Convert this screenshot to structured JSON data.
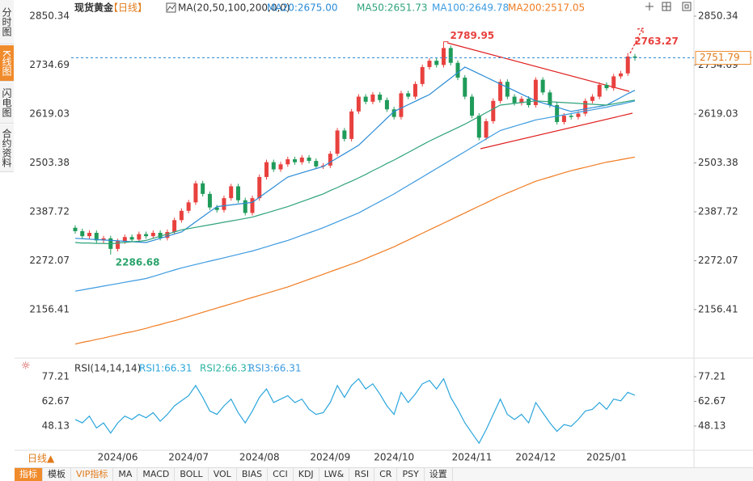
{
  "sidebar_tabs": [
    "分时图",
    "K线图",
    "闪电图",
    "合约资料"
  ],
  "period_button": "日线▲",
  "toolbar": [
    "指标",
    "模板",
    "VIP指标",
    "MA",
    "MACD",
    "BOLL",
    "VOL",
    "BIAS",
    "CCI",
    "KDJ",
    "LW&",
    "RSI",
    "CR",
    "PSY",
    "设置"
  ],
  "chart_data": [
    {
      "type": "candlestick",
      "title": "现货黄金",
      "period": "【日线】",
      "indicator": "MA(20,50,100,200,0,0)",
      "categories": [
        null,
        null,
        null,
        null,
        null,
        null,
        "2024/06",
        null,
        null,
        null,
        null,
        null,
        null,
        null,
        null,
        null,
        "2024/07",
        null,
        null,
        null,
        null,
        null,
        null,
        null,
        null,
        null,
        "2024/08",
        null,
        null,
        null,
        null,
        null,
        null,
        null,
        null,
        null,
        "2024/09",
        null,
        null,
        null,
        null,
        null,
        null,
        null,
        null,
        "2024/10",
        null,
        null,
        null,
        null,
        null,
        null,
        null,
        null,
        null,
        null,
        "2024/11",
        null,
        null,
        null,
        null,
        null,
        null,
        null,
        null,
        "2024/12",
        null,
        null,
        null,
        null,
        null,
        null,
        null,
        null,
        null,
        "2025/01",
        null,
        null,
        null,
        null
      ],
      "candles": [
        [
          2350,
          2356,
          2336,
          2342
        ],
        [
          2342,
          2348,
          2324,
          2330
        ],
        [
          2330,
          2344,
          2324,
          2338
        ],
        [
          2338,
          2344,
          2314,
          2320
        ],
        [
          2320,
          2331,
          2314,
          2325
        ],
        [
          2325,
          2331,
          2286.68,
          2300
        ],
        [
          2300,
          2324,
          2294,
          2318
        ],
        [
          2318,
          2334,
          2312,
          2328
        ],
        [
          2328,
          2334,
          2316,
          2322
        ],
        [
          2322,
          2341,
          2316,
          2335
        ],
        [
          2335,
          2341,
          2324,
          2330
        ],
        [
          2330,
          2344,
          2324,
          2338
        ],
        [
          2338,
          2344,
          2320,
          2326
        ],
        [
          2326,
          2346,
          2320,
          2340
        ],
        [
          2340,
          2374,
          2334,
          2368
        ],
        [
          2368,
          2396,
          2362,
          2390
        ],
        [
          2390,
          2416,
          2384,
          2410
        ],
        [
          2410,
          2461,
          2404,
          2455
        ],
        [
          2455,
          2461,
          2424,
          2430
        ],
        [
          2430,
          2436,
          2392,
          2398
        ],
        [
          2398,
          2404,
          2386,
          2392
        ],
        [
          2392,
          2426,
          2386,
          2420
        ],
        [
          2420,
          2454,
          2414,
          2448
        ],
        [
          2448,
          2454,
          2409,
          2415
        ],
        [
          2415,
          2421,
          2379,
          2385
        ],
        [
          2385,
          2426,
          2379,
          2420
        ],
        [
          2420,
          2476,
          2414,
          2470
        ],
        [
          2470,
          2511,
          2464,
          2505
        ],
        [
          2505,
          2511,
          2482,
          2488
        ],
        [
          2488,
          2506,
          2482,
          2500
        ],
        [
          2500,
          2518,
          2494,
          2512
        ],
        [
          2512,
          2518,
          2499,
          2505
        ],
        [
          2505,
          2522,
          2499,
          2516
        ],
        [
          2516,
          2522,
          2502,
          2508
        ],
        [
          2508,
          2514,
          2489,
          2495
        ],
        [
          2495,
          2503,
          2489,
          2497
        ],
        [
          2497,
          2531,
          2491,
          2525
        ],
        [
          2525,
          2586,
          2519,
          2580
        ],
        [
          2580,
          2586,
          2554,
          2560
        ],
        [
          2560,
          2631,
          2554,
          2625
        ],
        [
          2625,
          2666,
          2619,
          2660
        ],
        [
          2660,
          2666,
          2642,
          2648
        ],
        [
          2648,
          2671,
          2642,
          2665
        ],
        [
          2665,
          2671,
          2646,
          2652
        ],
        [
          2652,
          2658,
          2624,
          2630
        ],
        [
          2630,
          2636,
          2606,
          2612
        ],
        [
          2612,
          2674,
          2606,
          2668
        ],
        [
          2668,
          2674,
          2654,
          2660
        ],
        [
          2660,
          2696,
          2654,
          2690
        ],
        [
          2690,
          2736,
          2684,
          2730
        ],
        [
          2730,
          2751,
          2724,
          2745
        ],
        [
          2745,
          2751,
          2729,
          2735
        ],
        [
          2735,
          2789.95,
          2729,
          2775
        ],
        [
          2775,
          2781,
          2734,
          2740
        ],
        [
          2740,
          2746,
          2699,
          2705
        ],
        [
          2705,
          2711,
          2654,
          2660
        ],
        [
          2660,
          2666,
          2609,
          2615
        ],
        [
          2615,
          2621,
          2557,
          2563
        ],
        [
          2563,
          2608,
          2557,
          2602
        ],
        [
          2602,
          2656,
          2596,
          2650
        ],
        [
          2650,
          2701,
          2644,
          2695
        ],
        [
          2695,
          2701,
          2654,
          2660
        ],
        [
          2660,
          2666,
          2639,
          2645
        ],
        [
          2645,
          2661,
          2639,
          2655
        ],
        [
          2655,
          2661,
          2634,
          2640
        ],
        [
          2640,
          2706,
          2634,
          2700
        ],
        [
          2700,
          2706,
          2664,
          2670
        ],
        [
          2670,
          2676,
          2634,
          2640
        ],
        [
          2640,
          2646,
          2594,
          2600
        ],
        [
          2600,
          2621,
          2594,
          2615
        ],
        [
          2615,
          2621,
          2606,
          2612
        ],
        [
          2612,
          2626,
          2606,
          2620
        ],
        [
          2620,
          2656,
          2614,
          2650
        ],
        [
          2650,
          2666,
          2644,
          2660
        ],
        [
          2660,
          2694,
          2654,
          2688
        ],
        [
          2688,
          2694,
          2674,
          2680
        ],
        [
          2680,
          2714,
          2674,
          2708
        ],
        [
          2708,
          2721,
          2702,
          2715
        ],
        [
          2715,
          2763.27,
          2709,
          2755
        ],
        [
          2755,
          2761,
          2745,
          2751.79
        ]
      ],
      "up_color": "#e8413e",
      "down_color": "#1f9b5a",
      "series": [
        {
          "name": "MA20:2675.00",
          "color": "#2a8bd6",
          "values": [
            2325,
            2324,
            2323,
            2322,
            2321,
            2320,
            2319,
            2318,
            2317,
            2316,
            2315,
            2320,
            2325,
            2330,
            2335,
            2340,
            2352,
            2364,
            2376,
            2388,
            2400,
            2402,
            2404,
            2406,
            2408,
            2410,
            2422,
            2434,
            2446,
            2458,
            2470,
            2475,
            2480,
            2485,
            2490,
            2495,
            2505,
            2515,
            2525,
            2535,
            2545,
            2561,
            2577,
            2593,
            2609,
            2625,
            2633,
            2641,
            2649,
            2657,
            2665,
            2678,
            2691,
            2704,
            2717,
            2730,
            2722,
            2714,
            2706,
            2698,
            2690,
            2682,
            2674,
            2666,
            2658,
            2650,
            2645,
            2640,
            2635,
            2630,
            2625,
            2628,
            2631,
            2634,
            2637,
            2640,
            2649,
            2658,
            2667,
            2675
          ]
        },
        {
          "name": "MA50:2651.73",
          "color": "#2fa37a",
          "values": [
            2315,
            2314,
            2314,
            2313,
            2313,
            2312,
            2314,
            2315,
            2317,
            2318,
            2320,
            2325,
            2330,
            2335,
            2340,
            2345,
            2348,
            2351,
            2354,
            2357,
            2360,
            2363,
            2366,
            2369,
            2372,
            2375,
            2380,
            2385,
            2390,
            2395,
            2400,
            2406,
            2412,
            2418,
            2424,
            2430,
            2438,
            2445,
            2453,
            2460,
            2468,
            2476,
            2485,
            2493,
            2502,
            2510,
            2519,
            2528,
            2537,
            2546,
            2555,
            2563,
            2571,
            2579,
            2587,
            2595,
            2604,
            2613,
            2622,
            2631,
            2640,
            2642,
            2644,
            2646,
            2648,
            2650,
            2649,
            2648,
            2647,
            2646,
            2645,
            2644,
            2643,
            2642,
            2641,
            2640,
            2643,
            2646,
            2649,
            2651.73
          ]
        },
        {
          "name": "MA100:2649.78",
          "color": "#3d9be0",
          "values": [
            2200,
            2203,
            2206,
            2209,
            2212,
            2215,
            2218,
            2221,
            2224,
            2227,
            2230,
            2235,
            2240,
            2245,
            2250,
            2255,
            2259,
            2263,
            2267,
            2271,
            2275,
            2279,
            2283,
            2287,
            2291,
            2295,
            2300,
            2305,
            2310,
            2315,
            2320,
            2326,
            2332,
            2338,
            2344,
            2350,
            2357,
            2364,
            2371,
            2378,
            2385,
            2394,
            2403,
            2412,
            2421,
            2430,
            2440,
            2450,
            2460,
            2470,
            2480,
            2490,
            2500,
            2510,
            2520,
            2530,
            2540,
            2550,
            2560,
            2570,
            2580,
            2585,
            2590,
            2595,
            2600,
            2605,
            2608,
            2611,
            2614,
            2617,
            2620,
            2623,
            2626,
            2629,
            2632,
            2635,
            2639,
            2642,
            2646,
            2649.78
          ]
        },
        {
          "name": "MA200:2517.05",
          "color": "#f07c22",
          "values": [
            2075,
            2079,
            2082,
            2086,
            2089,
            2093,
            2097,
            2101,
            2104,
            2108,
            2112,
            2117,
            2121,
            2126,
            2130,
            2135,
            2140,
            2145,
            2150,
            2155,
            2160,
            2165,
            2170,
            2175,
            2180,
            2185,
            2190,
            2195,
            2200,
            2205,
            2210,
            2216,
            2222,
            2228,
            2234,
            2240,
            2246,
            2252,
            2258,
            2264,
            2270,
            2277,
            2284,
            2291,
            2298,
            2305,
            2313,
            2321,
            2329,
            2337,
            2345,
            2353,
            2361,
            2369,
            2377,
            2385,
            2393,
            2401,
            2409,
            2417,
            2425,
            2432,
            2439,
            2446,
            2453,
            2460,
            2465,
            2470,
            2475,
            2480,
            2485,
            2489,
            2493,
            2497,
            2501,
            2505,
            2508,
            2511,
            2514,
            2517.05
          ]
        }
      ],
      "ylim": [
        2047.4,
        2873.3
      ],
      "yticks": [
        2156.41,
        2272.07,
        2387.72,
        2503.38,
        2619.03,
        2734.69,
        2850.34
      ],
      "grid": false,
      "last_price_line": true
    },
    {
      "type": "line",
      "title": "RSI(14,14,14)",
      "series": [
        {
          "name": "RSI1:66.31",
          "color": "#2ba6dc",
          "values": [
            52,
            50,
            54,
            47,
            50,
            44,
            50,
            54,
            52,
            55,
            53,
            56,
            51,
            55,
            60,
            63,
            66,
            72,
            65,
            57,
            55,
            60,
            64,
            56,
            50,
            57,
            65,
            70,
            62,
            64,
            66,
            62,
            64,
            58,
            55,
            56,
            62,
            72,
            65,
            72,
            76,
            70,
            73,
            67,
            60,
            55,
            68,
            62,
            67,
            73,
            75,
            70,
            76,
            65,
            58,
            50,
            44,
            38,
            46,
            55,
            64,
            55,
            52,
            55,
            50,
            62,
            56,
            50,
            45,
            49,
            48,
            52,
            57,
            58,
            62,
            58,
            64,
            63,
            68,
            66.31
          ]
        }
      ],
      "extra_legend": [
        {
          "name": "RSI2:66.31",
          "color": "#2bb3a3"
        },
        {
          "name": "RSI3:66.31",
          "color": "#3d9be0"
        }
      ],
      "ylim": [
        34.78,
        85.79
      ],
      "yticks": [
        48.13,
        62.67,
        77.21
      ],
      "grid": false
    }
  ]
}
